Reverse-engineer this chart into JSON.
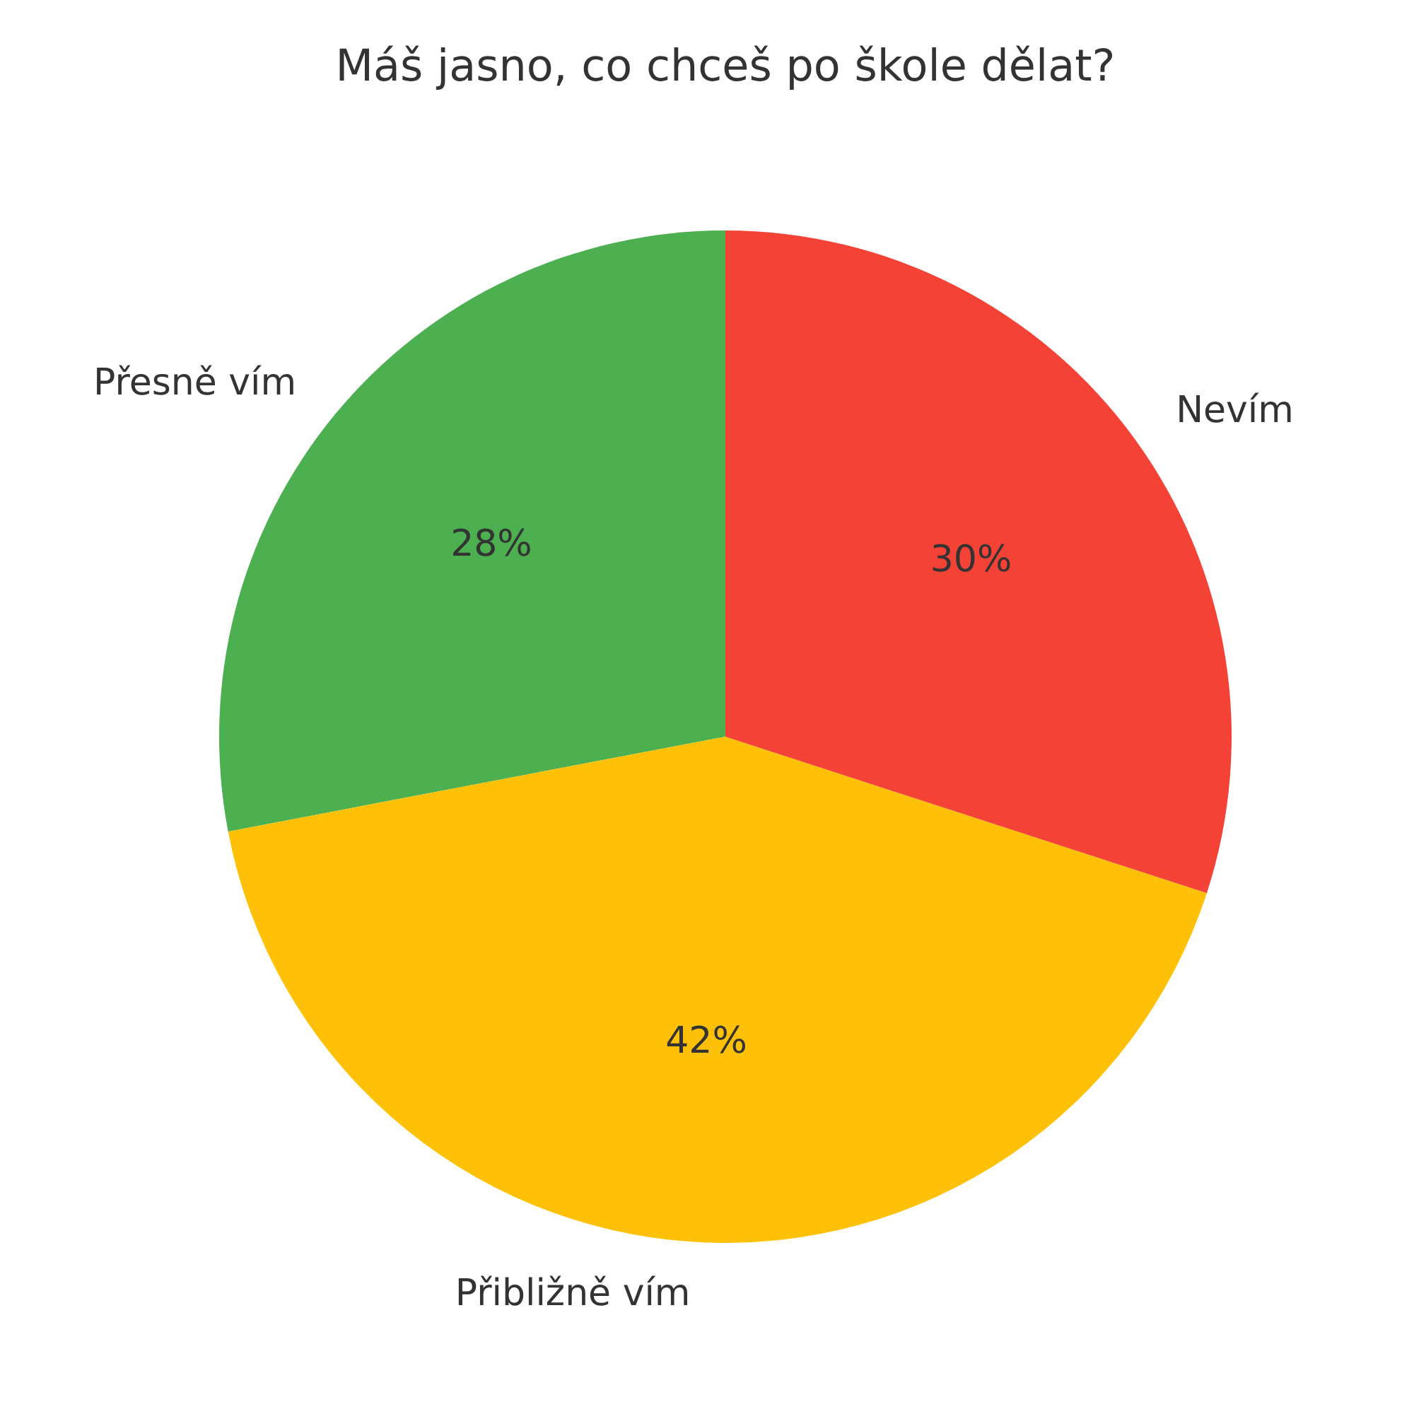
{
  "chart_data": {
    "type": "pie",
    "title": "Máš jasno, co chceš po škole dělat?",
    "categories": [
      "Přesně vím",
      "Přibližně vím",
      "Nevím"
    ],
    "values": [
      28,
      42,
      30
    ],
    "colors": [
      "#4caf50",
      "#ffc107",
      "#f44336"
    ],
    "value_labels": [
      "28%",
      "42%",
      "30%"
    ]
  }
}
